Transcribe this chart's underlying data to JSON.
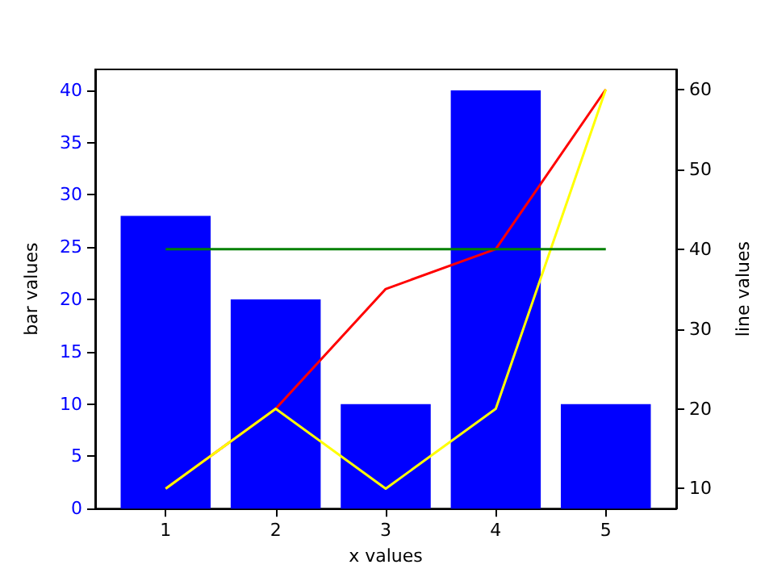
{
  "chart_data": {
    "type": "bar",
    "xlabel": "x values",
    "ylabel": "bar values",
    "y2label": "line values",
    "x": [
      1,
      2,
      3,
      4,
      5
    ],
    "xlim": [
      0.36,
      5.64
    ],
    "xticks": [
      1,
      2,
      3,
      4,
      5
    ],
    "ylim": [
      0,
      42
    ],
    "yticks": [
      0,
      5,
      10,
      15,
      20,
      25,
      30,
      35,
      40
    ],
    "y2lim": [
      7.5,
      62.5
    ],
    "y2ticks": [
      10,
      20,
      30,
      40,
      50,
      60
    ],
    "series": [
      {
        "color": "#0000ff",
        "values": [
          28,
          20,
          10,
          40,
          10
        ]
      },
      {
        "type": "line",
        "axis": "y2",
        "color": "#ff0000",
        "values": [
          10,
          20,
          35,
          40,
          60
        ]
      },
      {
        "type": "line",
        "axis": "y2",
        "color": "#ffff00",
        "values": [
          10,
          20,
          10,
          20,
          60
        ]
      },
      {
        "type": "line",
        "axis": "y2",
        "color": "#008000",
        "values": [
          40,
          40,
          40,
          40,
          40
        ]
      }
    ],
    "grid": false,
    "marker": "none",
    "line_style": "solid"
  }
}
